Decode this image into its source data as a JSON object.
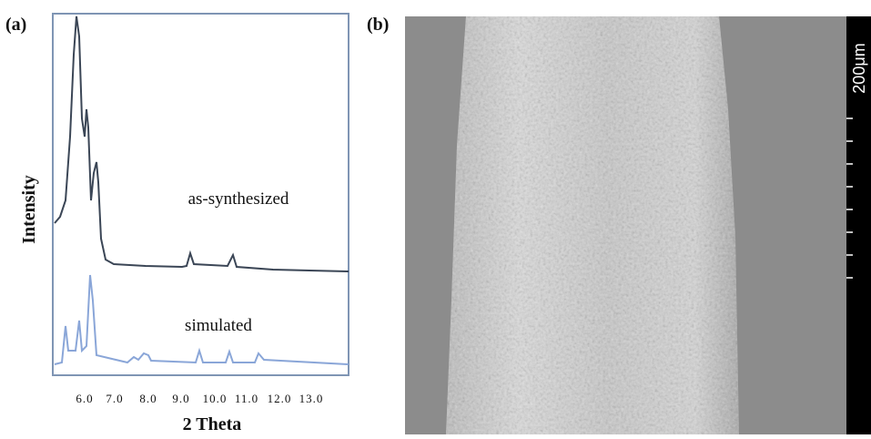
{
  "panels": [
    {
      "label": "(a)",
      "y_axis_label": "Intensity",
      "x_axis_label": "2 Theta",
      "x_ticks": [
        "6.0",
        "7.0",
        "8.0",
        "9.0",
        "10.0",
        "11.0",
        "12.0",
        "13.0"
      ],
      "curves": [
        {
          "label": "as-synthesized"
        },
        {
          "label": "simulated"
        }
      ]
    },
    {
      "label": "(b)",
      "scale_bar": "200μm"
    }
  ]
}
